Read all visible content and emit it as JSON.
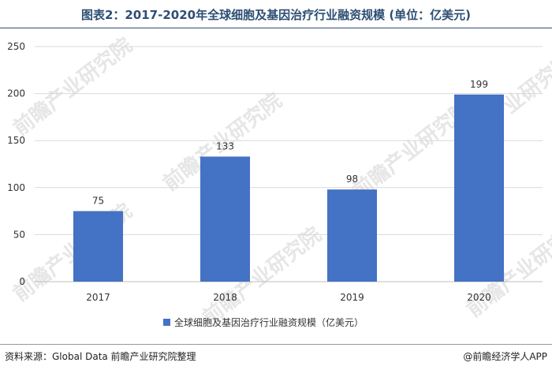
{
  "title": "图表2：2017-2020年全球细胞及基因治疗行业融资规模 (单位：亿美元)",
  "watermark": "前瞻产业研究院",
  "chart_data": {
    "type": "bar",
    "categories": [
      "2017",
      "2018",
      "2019",
      "2020"
    ],
    "series": [
      {
        "name": "全球细胞及基因治疗行业融资规模（亿美元）",
        "values": [
          75,
          133,
          98,
          199
        ],
        "color": "#4472c4"
      }
    ],
    "ylim": [
      0,
      250
    ],
    "yticks": [
      0,
      50,
      100,
      150,
      200,
      250
    ],
    "grid": true,
    "legend_position": "bottom"
  },
  "footer": {
    "source": "资料来源：Global Data 前瞻产业研究院整理",
    "brand": "@前瞻经济学人APP"
  }
}
